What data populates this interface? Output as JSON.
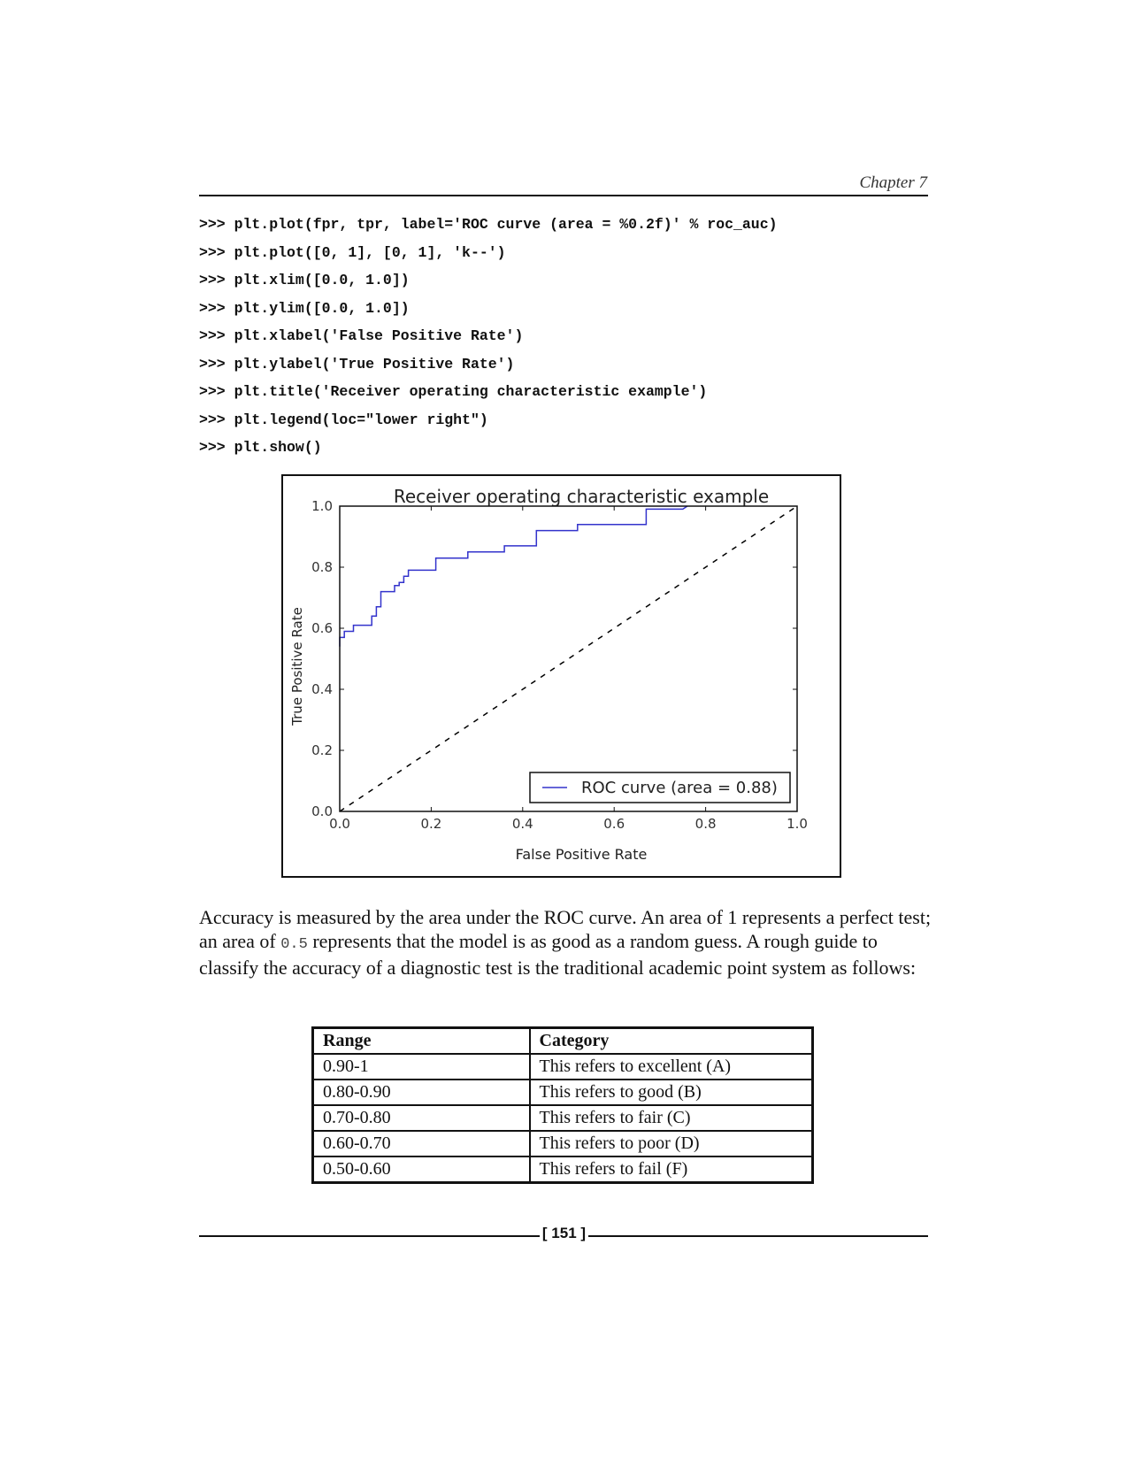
{
  "header": {
    "chapter": "Chapter 7"
  },
  "code": [
    ">>> plt.plot(fpr, tpr, label='ROC curve (area = %0.2f)' % roc_auc)",
    ">>> plt.plot([0, 1], [0, 1], 'k--')",
    ">>> plt.xlim([0.0, 1.0])",
    ">>> plt.ylim([0.0, 1.0])",
    ">>> plt.xlabel('False Positive Rate')",
    ">>> plt.ylabel('True Positive Rate')",
    ">>> plt.title('Receiver operating characteristic example')",
    ">>> plt.legend(loc=\"lower right\")",
    ">>> plt.show()"
  ],
  "chart_data": {
    "type": "line",
    "title": "Receiver operating characteristic example",
    "xlabel": "False Positive Rate",
    "ylabel": "True Positive Rate",
    "xlim": [
      0.0,
      1.0
    ],
    "ylim": [
      0.0,
      1.0
    ],
    "xticks": [
      "0.0",
      "0.2",
      "0.4",
      "0.6",
      "0.8",
      "1.0"
    ],
    "yticks": [
      "0.0",
      "0.2",
      "0.4",
      "0.6",
      "0.8",
      "1.0"
    ],
    "grid": false,
    "legend_position": "lower-right",
    "series": [
      {
        "name": "ROC curve (area = 0.88)",
        "color": "#3333cc",
        "style": "solid",
        "x": [
          0.0,
          0.0,
          0.01,
          0.01,
          0.03,
          0.03,
          0.07,
          0.07,
          0.08,
          0.08,
          0.09,
          0.09,
          0.12,
          0.12,
          0.13,
          0.13,
          0.14,
          0.14,
          0.15,
          0.15,
          0.21,
          0.21,
          0.28,
          0.28,
          0.36,
          0.36,
          0.43,
          0.43,
          0.52,
          0.52,
          0.67,
          0.67,
          0.75,
          0.76
        ],
        "y": [
          0.54,
          0.57,
          0.57,
          0.59,
          0.59,
          0.61,
          0.61,
          0.64,
          0.64,
          0.67,
          0.67,
          0.72,
          0.72,
          0.74,
          0.74,
          0.75,
          0.75,
          0.77,
          0.77,
          0.79,
          0.79,
          0.83,
          0.83,
          0.85,
          0.85,
          0.87,
          0.87,
          0.92,
          0.92,
          0.94,
          0.94,
          0.99,
          0.99,
          1.0
        ]
      },
      {
        "name": "",
        "color": "#000000",
        "style": "dashed",
        "x": [
          0.0,
          1.0
        ],
        "y": [
          0.0,
          1.0
        ]
      }
    ]
  },
  "paragraph": {
    "part1": "Accuracy is measured by the area under the ROC curve. An area of 1 represents a perfect test; an area of ",
    "code": "0.5",
    "part2": " represents that the model is as good as a random guess. A rough guide to classify the accuracy of a diagnostic test is the traditional academic point system as follows:"
  },
  "table": {
    "headers": [
      "Range",
      "Category"
    ],
    "rows": [
      [
        "0.90-1",
        "This refers to excellent (A)"
      ],
      [
        "0.80-0.90",
        "This refers to good (B)"
      ],
      [
        "0.70-0.80",
        "This refers to fair (C)"
      ],
      [
        "0.60-0.70",
        "This refers to poor (D)"
      ],
      [
        "0.50-0.60",
        "This refers to fail (F)"
      ]
    ]
  },
  "footer": {
    "page_number": "[ 151 ]"
  }
}
